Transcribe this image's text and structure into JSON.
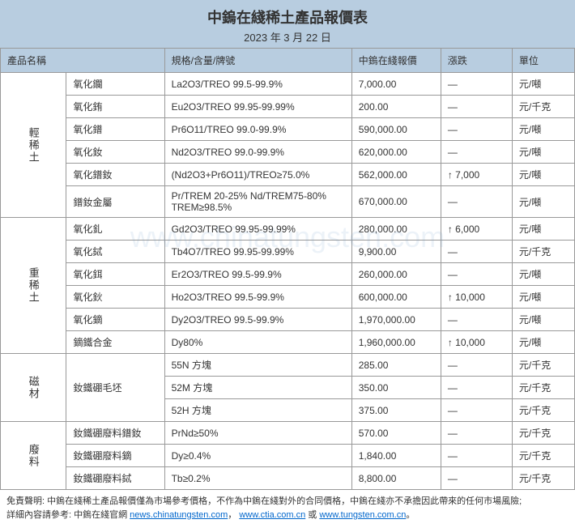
{
  "header": {
    "title": "中鎢在綫稀土產品報價表",
    "date": "2023 年 3 月 22 日"
  },
  "columns": {
    "name": "產品名稱",
    "spec": "規格/含量/牌號",
    "price": "中鎢在綫報價",
    "change": "漲跌",
    "unit": "單位"
  },
  "groups": [
    {
      "label": "輕稀土",
      "rows": [
        {
          "name": "氧化鑭",
          "spec": "La2O3/TREO 99.5-99.9%",
          "price": "7,000.00",
          "change": "—",
          "unit": "元/噸"
        },
        {
          "name": "氧化銪",
          "spec": "Eu2O3/TREO 99.95-99.99%",
          "price": "200.00",
          "change": "—",
          "unit": "元/千克"
        },
        {
          "name": "氧化鐠",
          "spec": "Pr6O11/TREO 99.0-99.9%",
          "price": "590,000.00",
          "change": "—",
          "unit": "元/噸"
        },
        {
          "name": "氧化釹",
          "spec": "Nd2O3/TREO 99.0-99.9%",
          "price": "620,000.00",
          "change": "—",
          "unit": "元/噸"
        },
        {
          "name": "氧化鐠釹",
          "spec": "(Nd2O3+Pr6O11)/TREO≥75.0%",
          "price": "562,000.00",
          "change": "↑ 7,000",
          "unit": "元/噸"
        },
        {
          "name": "鐠釹金屬",
          "spec": "Pr/TREM 20-25% Nd/TREM75-80% TREM≥98.5%",
          "price": "670,000.00",
          "change": "—",
          "unit": "元/噸"
        }
      ]
    },
    {
      "label": "重稀土",
      "rows": [
        {
          "name": "氧化釓",
          "spec": "Gd2O3/TREO 99.95-99.99%",
          "price": "280,000.00",
          "change": "↑ 6,000",
          "unit": "元/噸"
        },
        {
          "name": "氧化鋱",
          "spec": "Tb4O7/TREO 99.95-99.99%",
          "price": "9,900.00",
          "change": "—",
          "unit": "元/千克"
        },
        {
          "name": "氧化鉺",
          "spec": "Er2O3/TREO 99.5-99.9%",
          "price": "260,000.00",
          "change": "—",
          "unit": "元/噸"
        },
        {
          "name": "氧化鈥",
          "spec": "Ho2O3/TREO 99.5-99.9%",
          "price": "600,000.00",
          "change": "↑ 10,000",
          "unit": "元/噸"
        },
        {
          "name": "氧化鏑",
          "spec": "Dy2O3/TREO 99.5-99.9%",
          "price": "1,970,000.00",
          "change": "—",
          "unit": "元/噸"
        },
        {
          "name": "鏑鐵合金",
          "spec": "Dy80%",
          "price": "1,960,000.00",
          "change": "↑ 10,000",
          "unit": "元/噸"
        }
      ]
    },
    {
      "label": "磁材",
      "rows": [
        {
          "name": "釹鐵硼毛坯",
          "spec": "55N 方塊",
          "price": "285.00",
          "change": "—",
          "unit": "元/千克",
          "namerowspan": 3
        },
        {
          "name": "",
          "spec": "52M 方塊",
          "price": "350.00",
          "change": "—",
          "unit": "元/千克"
        },
        {
          "name": "",
          "spec": "52H 方塊",
          "price": "375.00",
          "change": "—",
          "unit": "元/千克"
        }
      ]
    },
    {
      "label": "廢料",
      "rows": [
        {
          "name": "釹鐵硼廢料鐠釹",
          "spec": "PrNd≥50%",
          "price": "570.00",
          "change": "—",
          "unit": "元/千克"
        },
        {
          "name": "釹鐵硼廢料鏑",
          "spec": "Dy≥0.4%",
          "price": "1,840.00",
          "change": "—",
          "unit": "元/千克"
        },
        {
          "name": "釹鐵硼廢料鋱",
          "spec": "Tb≥0.2%",
          "price": "8,800.00",
          "change": "—",
          "unit": "元/千克"
        }
      ]
    }
  ],
  "footer": {
    "text1": "免責聲明: 中鎢在綫稀土產品報價僅為市場參考價格，不作為中鎢在綫對外的合同價格，中鎢在綫亦不承擔因此帶來的任何市場風險;",
    "text2": "詳細內容請參考: 中鎢在綫官網 ",
    "link1": "news.chinatungsten.com",
    "sep1": "，",
    "link2": "www.ctia.com.cn",
    "sep2": " 或 ",
    "link3": "www.tungsten.com.cn",
    "end": "。"
  },
  "watermark": "www.chinatungsten.com"
}
